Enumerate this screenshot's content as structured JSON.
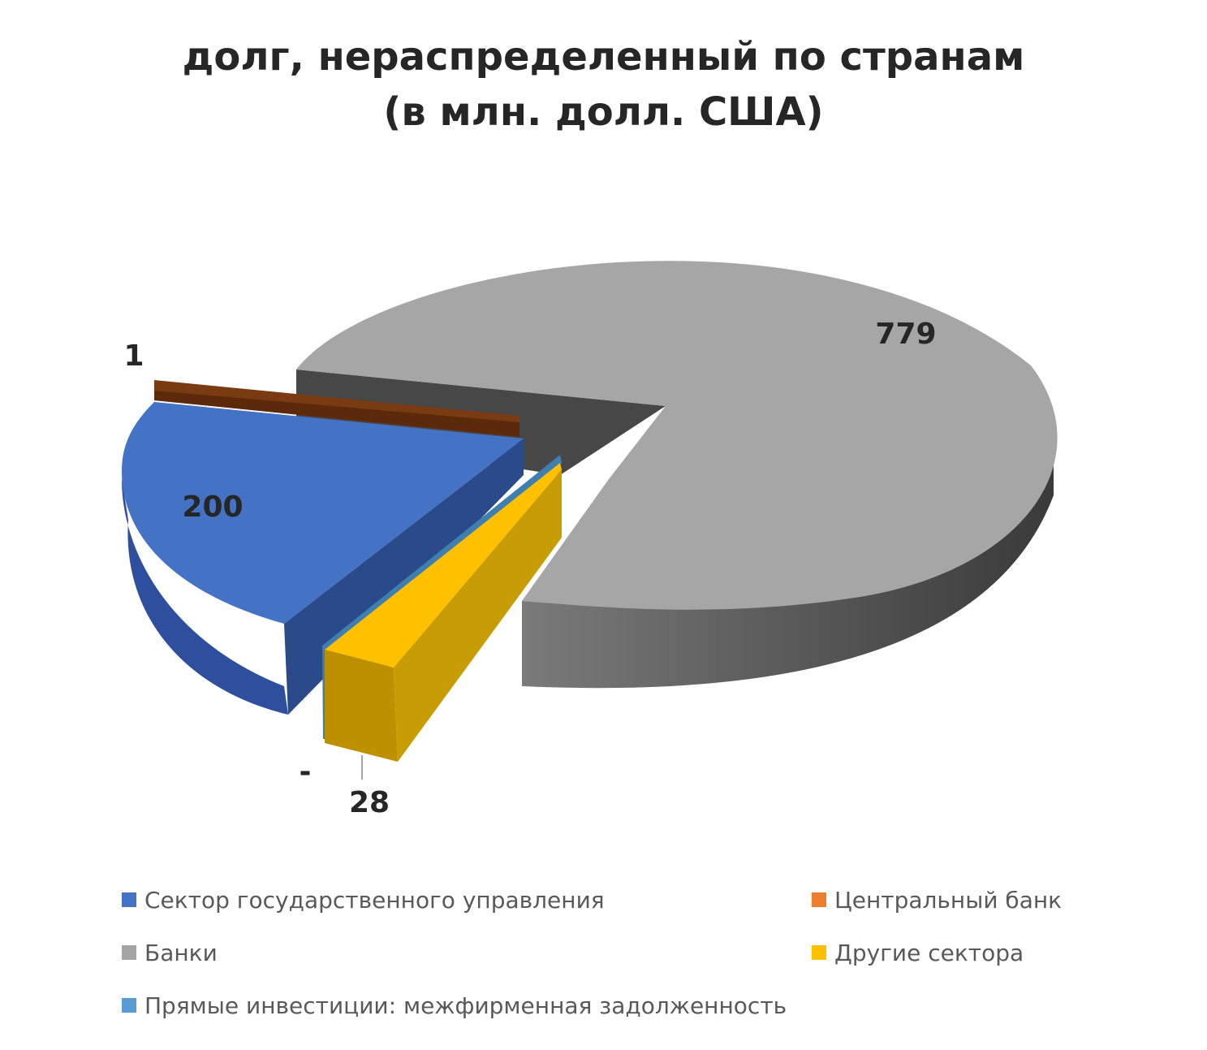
{
  "chart_data": {
    "type": "pie",
    "title": "долг, нераспределенный по странам",
    "subtitle": "(в млн. долл. США)",
    "legend_position": "bottom",
    "slices": [
      {
        "name": "Сектор государственного управления",
        "value": 200,
        "label": "200",
        "color": "#4472C4"
      },
      {
        "name": "Центральный банк",
        "value": 1,
        "label": "1",
        "color": "#ED7D31"
      },
      {
        "name": "Банки",
        "value": 779,
        "label": "779",
        "color": "#A5A5A5"
      },
      {
        "name": "Другие сектора",
        "value": 28,
        "label": "28",
        "color": "#FFC000"
      },
      {
        "name": "Прямые инвестиции: межфирменная задолженность",
        "value": 0,
        "label": "-",
        "color": "#5B9BD5"
      }
    ]
  }
}
